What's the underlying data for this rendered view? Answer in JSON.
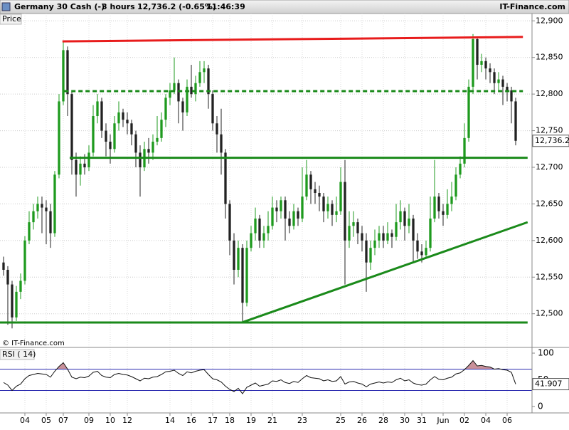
{
  "header": {
    "instrument": "Germany 30 Cash (-)",
    "interval": "3 hours",
    "quote": "12,736.2 (-0.65%)",
    "time": "11:46:39",
    "site": "IT-Finance.com"
  },
  "watermark": "© IT-Finance.com",
  "chart_data": [
    {
      "type": "candlestick",
      "axis_label": "Price",
      "up_color": "#1e9a1e",
      "down_color": "#222222",
      "grid": true,
      "xlim": [
        -0.83,
        123.83
      ],
      "ylim": [
        12455,
        12910
      ],
      "yticks": [
        {
          "value": 12500,
          "label": "12,500"
        },
        {
          "value": 12550,
          "label": "12,550"
        },
        {
          "value": 12600,
          "label": "12,600"
        },
        {
          "value": 12650,
          "label": "12,650"
        },
        {
          "value": 12700,
          "label": "12,700"
        },
        {
          "value": 12750,
          "label": "12,750"
        },
        {
          "value": 12800,
          "label": "12,800"
        },
        {
          "value": 12850,
          "label": "12,850"
        },
        {
          "value": 12900,
          "label": "12,900"
        }
      ],
      "xticks": [
        {
          "value": 5,
          "label": "04"
        },
        {
          "value": 10,
          "label": "05"
        },
        {
          "value": 14,
          "label": "07"
        },
        {
          "value": 20,
          "label": "09"
        },
        {
          "value": 25,
          "label": "10"
        },
        {
          "value": 29,
          "label": "12"
        },
        {
          "value": 39,
          "label": "14"
        },
        {
          "value": 44,
          "label": "16"
        },
        {
          "value": 49,
          "label": "17"
        },
        {
          "value": 53,
          "label": "18"
        },
        {
          "value": 58,
          "label": "19"
        },
        {
          "value": 63,
          "label": "21"
        },
        {
          "value": 70,
          "label": "23"
        },
        {
          "value": 79,
          "label": "25"
        },
        {
          "value": 84,
          "label": "26"
        },
        {
          "value": 89,
          "label": "28"
        },
        {
          "value": 94,
          "label": "30"
        },
        {
          "value": 98,
          "label": "31"
        },
        {
          "value": 103,
          "label": "Jun"
        },
        {
          "value": 108,
          "label": "02"
        },
        {
          "value": 113,
          "label": "04"
        },
        {
          "value": 118,
          "label": "06"
        }
      ],
      "last_price": {
        "value": 12736.2,
        "label": "12,736.2"
      },
      "open": [
        12570,
        12560,
        12540,
        12495,
        12530,
        12545,
        12600,
        12625,
        12640,
        12650,
        12645,
        12640,
        12610,
        12690,
        12790,
        12860,
        12800,
        12710,
        12690,
        12705,
        12700,
        12720,
        12770,
        12790,
        12750,
        12735,
        12725,
        12760,
        12775,
        12765,
        12760,
        12745,
        12720,
        12700,
        12725,
        12720,
        12735,
        12740,
        12765,
        12795,
        12805,
        12815,
        12790,
        12775,
        12810,
        12800,
        12815,
        12830,
        12835,
        12800,
        12760,
        12745,
        12720,
        12650,
        12600,
        12560,
        12590,
        12515,
        12590,
        12610,
        12630,
        12600,
        12610,
        12620,
        12645,
        12640,
        12655,
        12630,
        12620,
        12640,
        12630,
        12660,
        12690,
        12670,
        12665,
        12660,
        12640,
        12650,
        12635,
        12640,
        12680,
        12600,
        12620,
        12625,
        12610,
        12600,
        12570,
        12590,
        12600,
        12610,
        12600,
        12610,
        12605,
        12625,
        12640,
        12620,
        12630,
        12600,
        12585,
        12580,
        12590,
        12630,
        12660,
        12640,
        12635,
        12650,
        12660,
        12690,
        12705,
        12740,
        12810,
        12875,
        12840,
        12845,
        12835,
        12830,
        12815,
        12820,
        12810,
        12805,
        12790
      ],
      "high": [
        12578,
        12565,
        12545,
        12538,
        12555,
        12606,
        12640,
        12650,
        12660,
        12660,
        12655,
        12650,
        12695,
        12800,
        12872,
        12865,
        12805,
        12720,
        12715,
        12718,
        12730,
        12785,
        12800,
        12795,
        12760,
        12745,
        12770,
        12790,
        12780,
        12775,
        12765,
        12750,
        12730,
        12735,
        12740,
        12745,
        12770,
        12775,
        12800,
        12815,
        12850,
        12820,
        12795,
        12820,
        12840,
        12825,
        12845,
        12845,
        12840,
        12805,
        12770,
        12780,
        12725,
        12655,
        12610,
        12600,
        12595,
        12600,
        12620,
        12645,
        12635,
        12620,
        12640,
        12660,
        12655,
        12660,
        12660,
        12640,
        12650,
        12645,
        12700,
        12710,
        12695,
        12680,
        12675,
        12665,
        12660,
        12655,
        12660,
        12700,
        12710,
        12640,
        12640,
        12630,
        12620,
        12610,
        12600,
        12615,
        12620,
        12620,
        12625,
        12615,
        12650,
        12655,
        12645,
        12650,
        12635,
        12610,
        12595,
        12600,
        12660,
        12710,
        12665,
        12650,
        12670,
        12680,
        12700,
        12715,
        12760,
        12820,
        12882,
        12878,
        12855,
        12850,
        12842,
        12835,
        12830,
        12825,
        12815,
        12810,
        12795
      ],
      "low": [
        12552,
        12485,
        12480,
        12490,
        12520,
        12540,
        12595,
        12615,
        12630,
        12610,
        12595,
        12590,
        12605,
        12685,
        12785,
        12770,
        12690,
        12660,
        12675,
        12690,
        12695,
        12715,
        12760,
        12740,
        12715,
        12705,
        12720,
        12750,
        12755,
        12745,
        12730,
        12700,
        12660,
        12695,
        12705,
        12710,
        12730,
        12735,
        12755,
        12785,
        12800,
        12760,
        12750,
        12770,
        12795,
        12790,
        12810,
        12815,
        12780,
        12750,
        12720,
        12690,
        12630,
        12580,
        12540,
        12550,
        12490,
        12510,
        12585,
        12600,
        12590,
        12590,
        12600,
        12615,
        12625,
        12630,
        12600,
        12610,
        12615,
        12620,
        12625,
        12655,
        12650,
        12650,
        12640,
        12625,
        12630,
        12620,
        12625,
        12635,
        12540,
        12590,
        12605,
        12595,
        12585,
        12530,
        12560,
        12580,
        12590,
        12590,
        12595,
        12590,
        12600,
        12615,
        12600,
        12610,
        12570,
        12575,
        12570,
        12575,
        12585,
        12625,
        12630,
        12620,
        12630,
        12640,
        12655,
        12685,
        12700,
        12735,
        12800,
        12820,
        12830,
        12820,
        12815,
        12800,
        12805,
        12785,
        12790,
        12760,
        12730
      ],
      "close": [
        12560,
        12540,
        12495,
        12530,
        12545,
        12600,
        12625,
        12640,
        12650,
        12645,
        12640,
        12610,
        12690,
        12790,
        12860,
        12800,
        12710,
        12690,
        12705,
        12700,
        12720,
        12770,
        12790,
        12750,
        12735,
        12725,
        12760,
        12775,
        12765,
        12760,
        12745,
        12720,
        12700,
        12725,
        12720,
        12735,
        12740,
        12765,
        12795,
        12805,
        12815,
        12790,
        12775,
        12810,
        12800,
        12815,
        12830,
        12835,
        12800,
        12760,
        12745,
        12720,
        12650,
        12600,
        12560,
        12590,
        12515,
        12590,
        12610,
        12630,
        12600,
        12610,
        12620,
        12645,
        12640,
        12655,
        12630,
        12620,
        12640,
        12630,
        12660,
        12690,
        12670,
        12665,
        12660,
        12640,
        12650,
        12635,
        12640,
        12680,
        12600,
        12620,
        12625,
        12610,
        12600,
        12570,
        12590,
        12600,
        12610,
        12600,
        12610,
        12605,
        12625,
        12640,
        12620,
        12630,
        12600,
        12585,
        12580,
        12590,
        12630,
        12660,
        12640,
        12635,
        12650,
        12660,
        12690,
        12705,
        12740,
        12810,
        12875,
        12840,
        12845,
        12835,
        12830,
        12815,
        12820,
        12810,
        12805,
        12790,
        12736.2
      ],
      "trend_lines": [
        {
          "color": "#e81c1c",
          "dashed": false,
          "x": [
            13.8,
            121.7
          ],
          "y": [
            12872,
            12878
          ]
        },
        {
          "color": "#1a8a1a",
          "dashed": true,
          "x": [
            14.2,
            121.7
          ],
          "y": [
            12804,
            12804
          ]
        },
        {
          "color": "#1a8a1a",
          "dashed": false,
          "x": [
            15.5,
            122.8
          ],
          "y": [
            12713,
            12713
          ]
        },
        {
          "color": "#1a8a1a",
          "dashed": false,
          "x": [
            -0.83,
            122.8
          ],
          "y": [
            12488,
            12488
          ]
        },
        {
          "color": "#1a8a1a",
          "dashed": false,
          "x": [
            55.8,
            122.8
          ],
          "y": [
            12488,
            12625
          ]
        }
      ]
    },
    {
      "type": "line",
      "title": "RSI ( 14)",
      "color": "#111111",
      "band_color": "#2b2bb0",
      "fill_color": "#c9919a",
      "xlim": [
        -0.83,
        123.83
      ],
      "ylim": [
        -10.7,
        106.7
      ],
      "yticks": [
        0,
        50,
        100
      ],
      "bands": [
        30,
        70
      ],
      "values": [
        45,
        40,
        30,
        38,
        42,
        52,
        58,
        60,
        62,
        61,
        60,
        55,
        66,
        75,
        82,
        70,
        55,
        52,
        55,
        54,
        57,
        64,
        66,
        58,
        55,
        54,
        60,
        62,
        60,
        59,
        56,
        52,
        48,
        53,
        52,
        55,
        56,
        60,
        65,
        66,
        68,
        62,
        58,
        65,
        63,
        66,
        68,
        69,
        60,
        52,
        50,
        46,
        38,
        32,
        28,
        34,
        24,
        36,
        40,
        44,
        38,
        40,
        42,
        48,
        47,
        50,
        45,
        43,
        47,
        45,
        52,
        58,
        54,
        53,
        52,
        48,
        50,
        47,
        48,
        56,
        42,
        46,
        47,
        44,
        42,
        37,
        42,
        44,
        46,
        44,
        46,
        45,
        50,
        53,
        48,
        50,
        44,
        41,
        40,
        42,
        50,
        56,
        51,
        50,
        53,
        55,
        61,
        63,
        69,
        77,
        86,
        76,
        77,
        75,
        74,
        70,
        71,
        69,
        68,
        64,
        41.907
      ]
    }
  ]
}
